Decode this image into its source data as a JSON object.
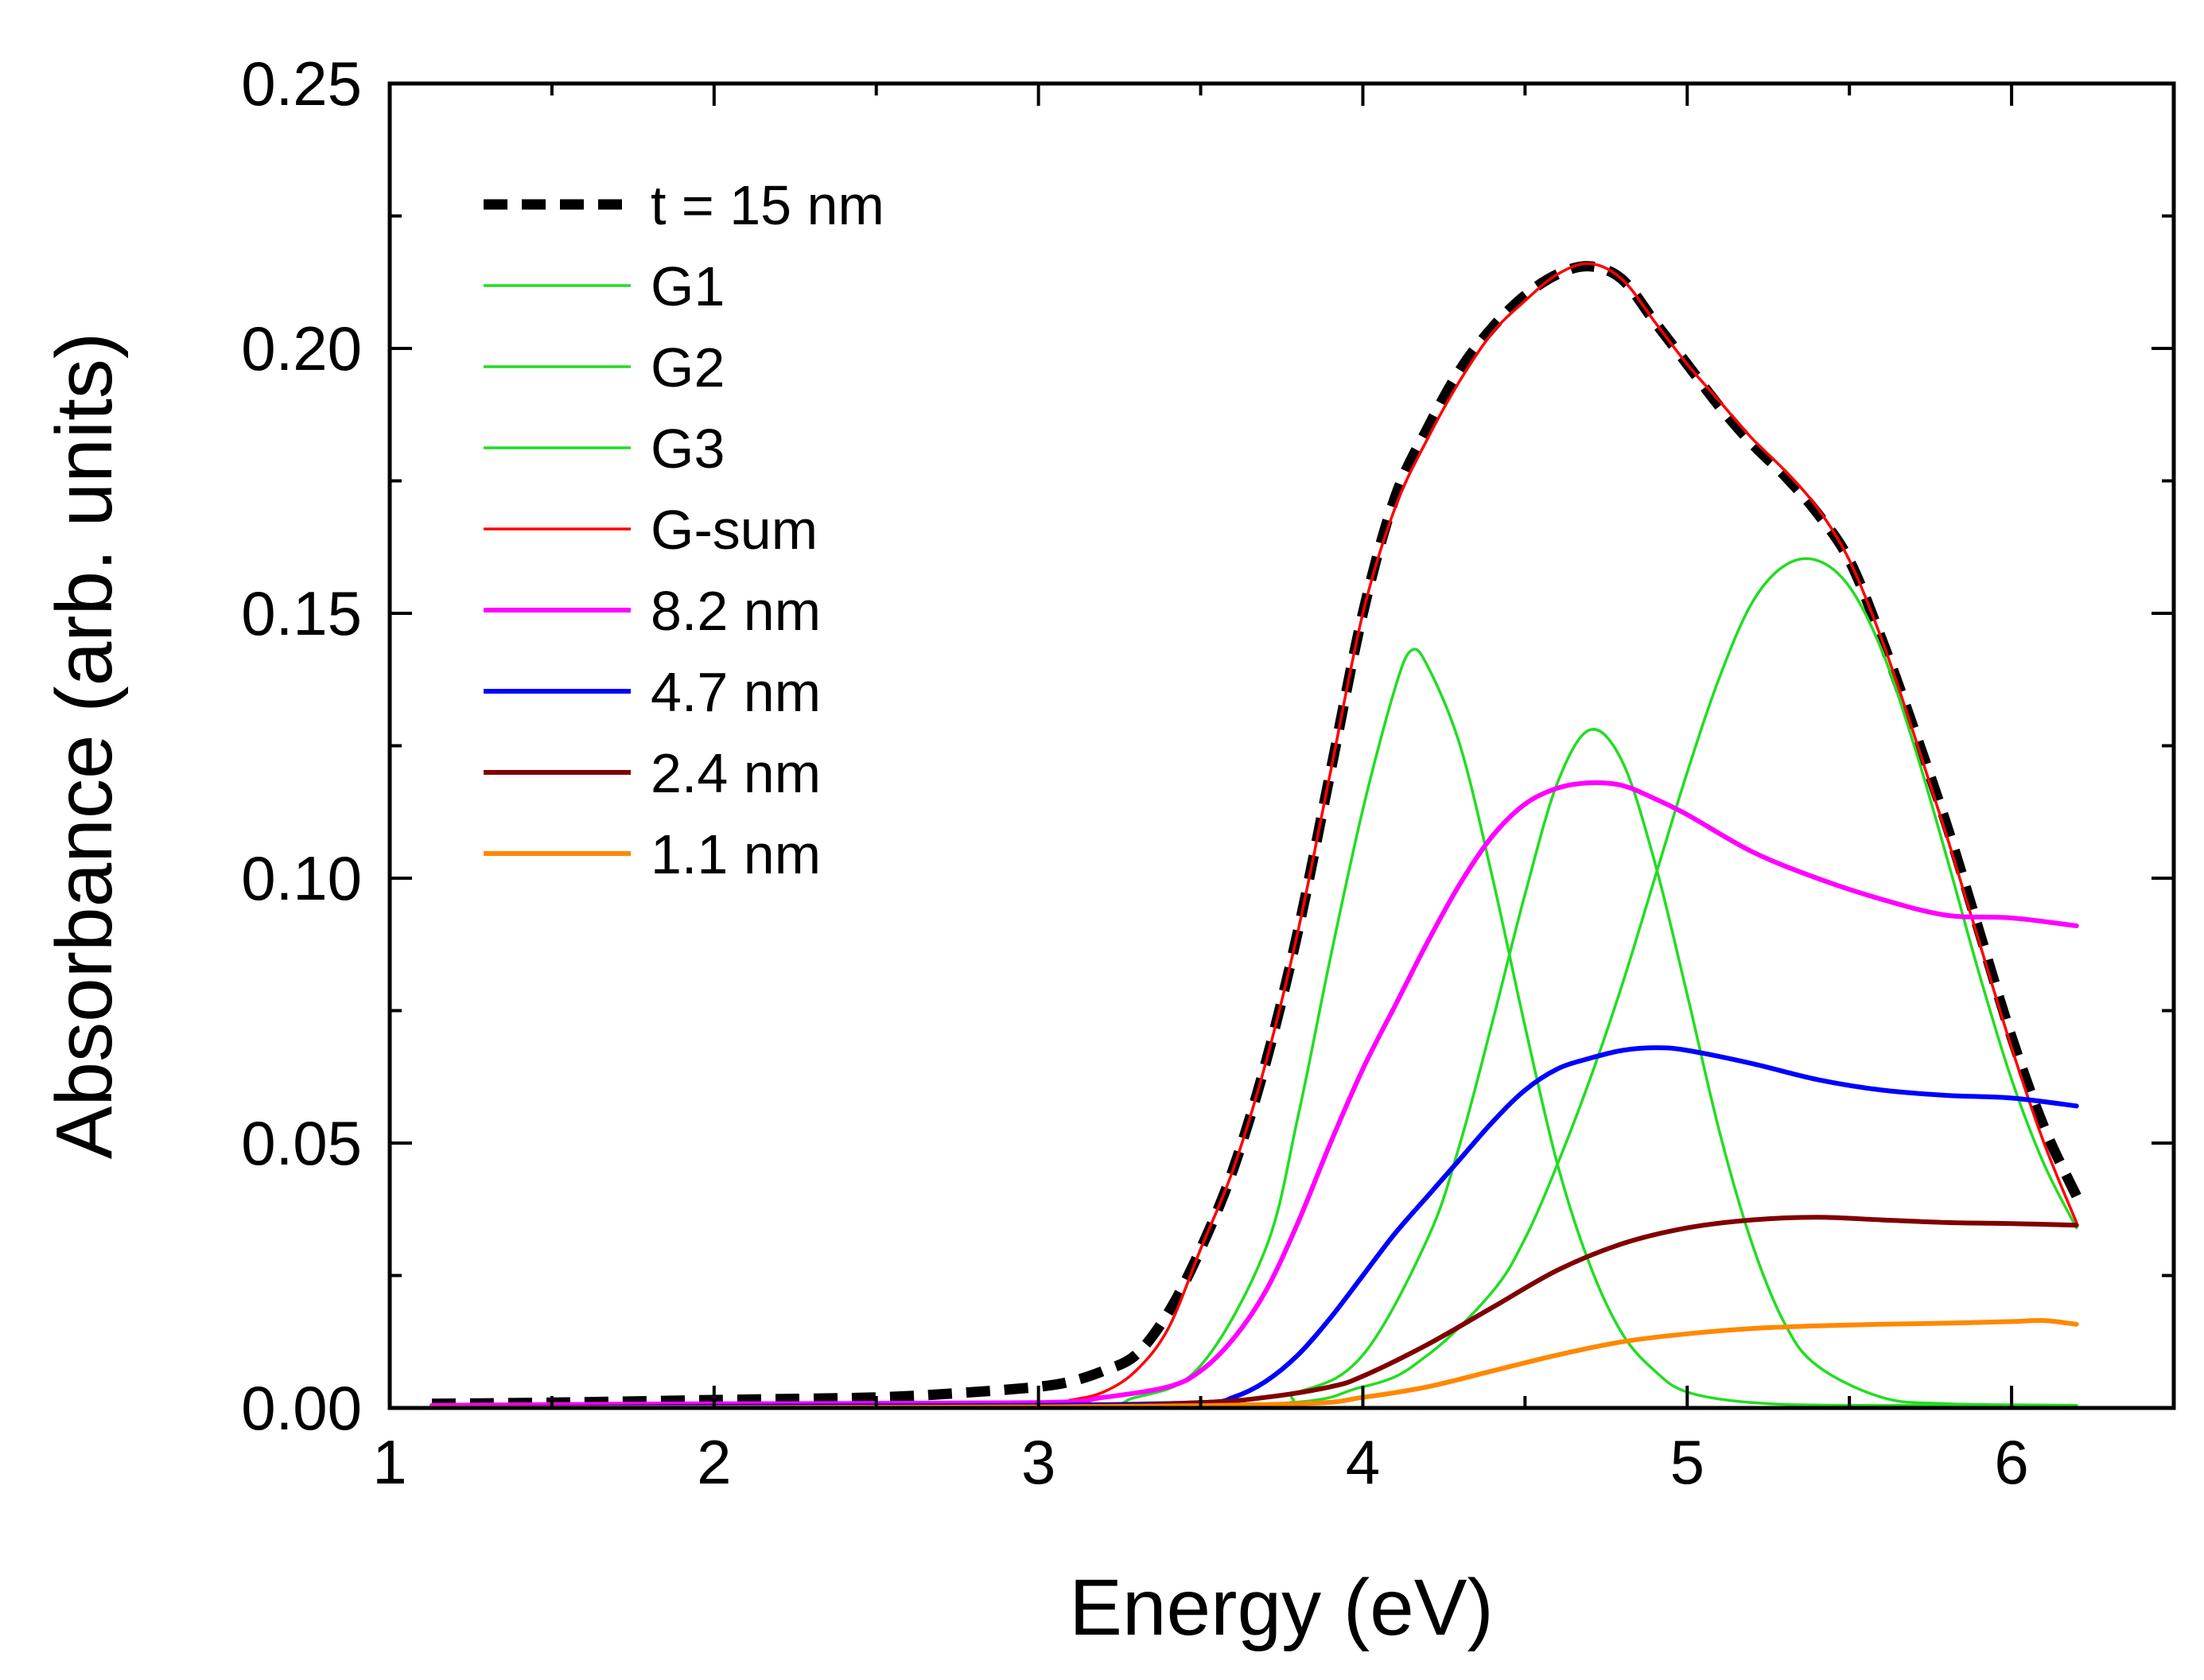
{
  "chart_data": {
    "type": "line",
    "title": "",
    "xlabel": "Energy (eV)",
    "ylabel": "Absorbance (arb. units)",
    "xlim": [
      1,
      6.5
    ],
    "ylim": [
      0,
      0.25
    ],
    "xticks": [
      1,
      2,
      3,
      4,
      5,
      6
    ],
    "xtick_labels": [
      "1",
      "2",
      "3",
      "4",
      "5",
      "6"
    ],
    "yticks": [
      0,
      0.05,
      0.1,
      0.15,
      0.2,
      0.25
    ],
    "ytick_labels": [
      "0.00",
      "0.05",
      "0.10",
      "0.15",
      "0.20",
      "0.25"
    ],
    "grid": false,
    "legend_position": "top-left",
    "series": [
      {
        "name": "t = 15 nm",
        "label": "t = 15 nm",
        "color": "#000000",
        "style": "dashed",
        "x": [
          1.13,
          1.5,
          2.0,
          2.5,
          2.8,
          3.0,
          3.1,
          3.2,
          3.3,
          3.4,
          3.5,
          3.6,
          3.7,
          3.8,
          3.9,
          4.0,
          4.1,
          4.2,
          4.3,
          4.4,
          4.5,
          4.6,
          4.7,
          4.8,
          4.9,
          5.0,
          5.1,
          5.2,
          5.3,
          5.4,
          5.5,
          5.6,
          5.7,
          5.8,
          5.9,
          6.0,
          6.1,
          6.2
        ],
        "y": [
          0.0008,
          0.001,
          0.0015,
          0.002,
          0.003,
          0.004,
          0.005,
          0.007,
          0.01,
          0.018,
          0.03,
          0.045,
          0.065,
          0.09,
          0.12,
          0.15,
          0.172,
          0.185,
          0.196,
          0.204,
          0.21,
          0.214,
          0.2155,
          0.213,
          0.205,
          0.197,
          0.189,
          0.182,
          0.176,
          0.169,
          0.16,
          0.145,
          0.128,
          0.11,
          0.09,
          0.07,
          0.053,
          0.04
        ]
      },
      {
        "name": "G1",
        "label": "G1",
        "color": "#22dd22",
        "style": "solid",
        "x": [
          1.13,
          3.0,
          3.3,
          3.5,
          3.7,
          3.8,
          3.9,
          4.0,
          4.1,
          4.15,
          4.2,
          4.3,
          4.4,
          4.5,
          4.6,
          4.7,
          4.8,
          4.9,
          5.0,
          5.2,
          5.5,
          6.2
        ],
        "y": [
          0,
          0.0003,
          0.002,
          0.008,
          0.03,
          0.055,
          0.085,
          0.113,
          0.136,
          0.143,
          0.14,
          0.125,
          0.1,
          0.072,
          0.046,
          0.027,
          0.014,
          0.007,
          0.003,
          0.001,
          0.0005,
          0.0005
        ]
      },
      {
        "name": "G2",
        "label": "G2",
        "color": "#22dd22",
        "style": "solid",
        "x": [
          1.13,
          3.5,
          3.8,
          4.0,
          4.2,
          4.3,
          4.4,
          4.5,
          4.6,
          4.7,
          4.8,
          4.9,
          5.0,
          5.1,
          5.2,
          5.3,
          5.4,
          5.6,
          5.8,
          6.2
        ],
        "y": [
          0,
          0.0003,
          0.003,
          0.01,
          0.032,
          0.05,
          0.073,
          0.097,
          0.118,
          0.128,
          0.122,
          0.103,
          0.078,
          0.052,
          0.031,
          0.016,
          0.008,
          0.002,
          0.0008,
          0.0005
        ]
      },
      {
        "name": "G3",
        "label": "G3",
        "color": "#22dd22",
        "style": "solid",
        "x": [
          1.13,
          3.5,
          4.0,
          4.2,
          4.4,
          4.5,
          4.6,
          4.7,
          4.8,
          4.9,
          5.0,
          5.1,
          5.2,
          5.3,
          5.4,
          5.5,
          5.6,
          5.7,
          5.8,
          5.9,
          6.0,
          6.1,
          6.2
        ],
        "y": [
          0,
          0.0003,
          0.004,
          0.01,
          0.022,
          0.032,
          0.046,
          0.062,
          0.08,
          0.1,
          0.12,
          0.138,
          0.152,
          0.159,
          0.16,
          0.155,
          0.143,
          0.125,
          0.104,
          0.082,
          0.062,
          0.046,
          0.034
        ]
      },
      {
        "name": "G-sum",
        "label": "G-sum",
        "color": "#ff0000",
        "style": "solid",
        "x": [
          1.13,
          2.0,
          3.0,
          3.1,
          3.2,
          3.3,
          3.4,
          3.5,
          3.6,
          3.7,
          3.8,
          3.9,
          4.0,
          4.1,
          4.2,
          4.3,
          4.4,
          4.5,
          4.6,
          4.7,
          4.8,
          4.9,
          5.0,
          5.1,
          5.2,
          5.3,
          5.4,
          5.5,
          5.6,
          5.7,
          5.8,
          5.9,
          6.0,
          6.1,
          6.2
        ],
        "y": [
          0,
          0.0005,
          0.001,
          0.0015,
          0.003,
          0.007,
          0.015,
          0.03,
          0.045,
          0.065,
          0.09,
          0.12,
          0.15,
          0.17,
          0.183,
          0.194,
          0.203,
          0.209,
          0.214,
          0.216,
          0.213,
          0.205,
          0.197,
          0.19,
          0.183,
          0.177,
          0.17,
          0.16,
          0.145,
          0.127,
          0.108,
          0.088,
          0.068,
          0.05,
          0.035
        ]
      },
      {
        "name": "8.2 nm",
        "label": "8.2 nm",
        "color": "#ff00ff",
        "style": "solid",
        "x": [
          1.13,
          2.0,
          3.0,
          3.2,
          3.4,
          3.5,
          3.6,
          3.7,
          3.8,
          3.9,
          4.0,
          4.1,
          4.2,
          4.3,
          4.4,
          4.5,
          4.6,
          4.7,
          4.8,
          4.9,
          5.0,
          5.2,
          5.4,
          5.6,
          5.8,
          6.0,
          6.2
        ],
        "y": [
          0.0005,
          0.0008,
          0.001,
          0.002,
          0.004,
          0.007,
          0.013,
          0.022,
          0.035,
          0.05,
          0.064,
          0.076,
          0.088,
          0.099,
          0.108,
          0.114,
          0.117,
          0.118,
          0.1175,
          0.115,
          0.112,
          0.105,
          0.1,
          0.096,
          0.093,
          0.0925,
          0.091
        ]
      },
      {
        "name": "4.7 nm",
        "label": "4.7 nm",
        "color": "#0000ff",
        "style": "solid",
        "x": [
          1.13,
          2.0,
          3.0,
          3.5,
          3.6,
          3.7,
          3.8,
          3.9,
          4.0,
          4.1,
          4.2,
          4.3,
          4.4,
          4.5,
          4.6,
          4.7,
          4.8,
          4.9,
          5.0,
          5.2,
          5.4,
          5.6,
          5.8,
          6.0,
          6.2
        ],
        "y": [
          0,
          0.0003,
          0.0005,
          0.001,
          0.002,
          0.005,
          0.01,
          0.017,
          0.025,
          0.033,
          0.04,
          0.047,
          0.054,
          0.06,
          0.064,
          0.066,
          0.0675,
          0.068,
          0.0675,
          0.065,
          0.062,
          0.06,
          0.059,
          0.0585,
          0.057
        ]
      },
      {
        "name": "2.4 nm",
        "label": "2.4 nm",
        "color": "#800000",
        "style": "solid",
        "x": [
          1.13,
          3.0,
          3.5,
          3.7,
          3.9,
          4.0,
          4.2,
          4.4,
          4.6,
          4.8,
          5.0,
          5.2,
          5.4,
          5.6,
          5.8,
          6.0,
          6.2
        ],
        "y": [
          0,
          0.0003,
          0.001,
          0.002,
          0.004,
          0.006,
          0.012,
          0.019,
          0.026,
          0.031,
          0.034,
          0.0355,
          0.036,
          0.0355,
          0.035,
          0.0348,
          0.0345
        ]
      },
      {
        "name": "1.1 nm",
        "label": "1.1 nm",
        "color": "#ff8800",
        "style": "solid",
        "x": [
          1.13,
          3.0,
          3.8,
          4.0,
          4.2,
          4.4,
          4.6,
          4.8,
          5.0,
          5.2,
          5.4,
          5.6,
          5.8,
          6.0,
          6.1,
          6.2
        ],
        "y": [
          0,
          0.0002,
          0.0008,
          0.002,
          0.004,
          0.007,
          0.01,
          0.0125,
          0.014,
          0.015,
          0.0155,
          0.0158,
          0.016,
          0.0163,
          0.0165,
          0.0158
        ]
      }
    ]
  }
}
